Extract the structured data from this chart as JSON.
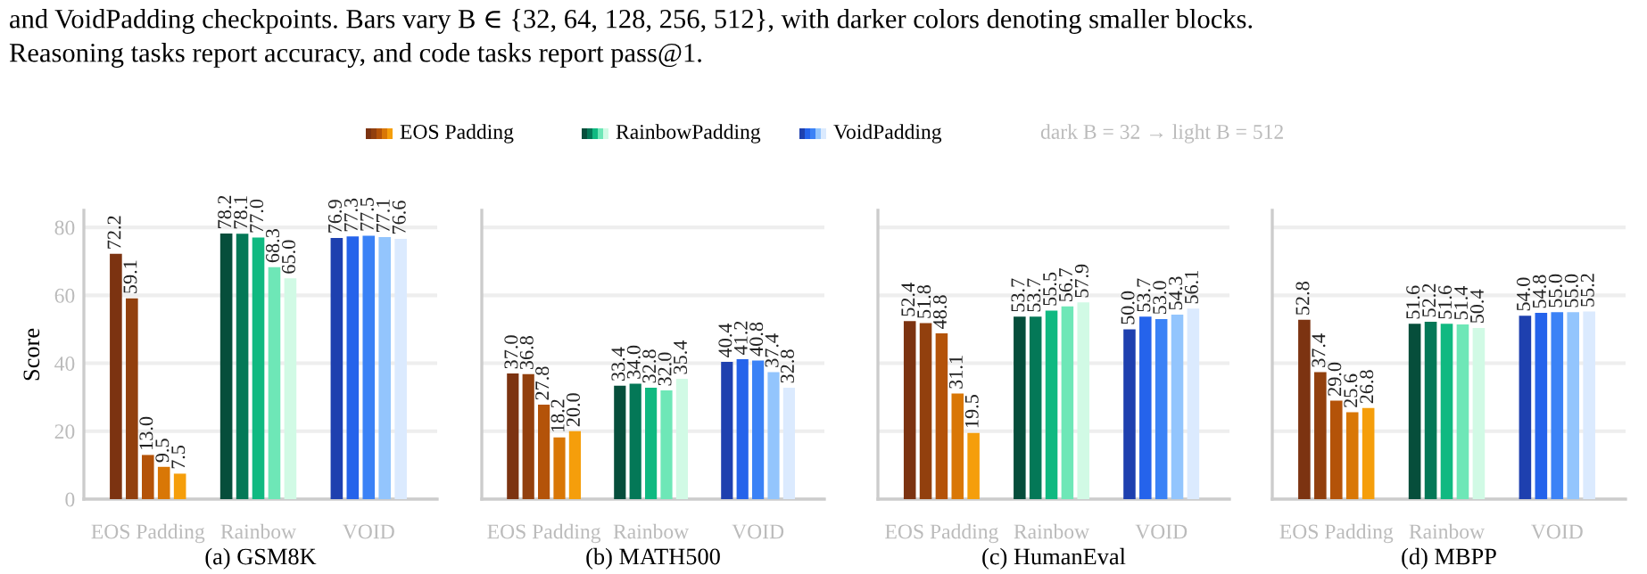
{
  "chart_data": [
    {
      "type": "bar",
      "xlabel": "(a) GSM8K",
      "ylabel": "Score",
      "categories": [
        "EOS Padding",
        "Rainbow",
        "VOID"
      ],
      "ylim": [
        0,
        85
      ],
      "yticks": [
        0,
        20,
        40,
        60,
        80
      ],
      "grid": "y",
      "annotations": [
        "and VoidPadding checkpoints. Bars vary B ∈ {32, 64, 128, 256, 512}, with darker colors denoting smaller blocks.",
        "Reasoning tasks report accuracy, and code tasks report pass@1.",
        "EOS Padding",
        "RainbowPadding",
        "VoidPadding",
        "dark B = 32 → light B = 512"
      ],
      "series": [
        {
          "colors": [
            "#7c3311",
            "#064e3b",
            "#1e40af"
          ],
          "values": [
            72.2,
            78.2,
            76.9
          ],
          "value_labels": [
            "72.2",
            "78.2",
            "76.9"
          ]
        },
        {
          "colors": [
            "#92400e",
            "#047857",
            "#2563eb"
          ],
          "values": [
            59.1,
            78.1,
            77.3
          ],
          "value_labels": [
            "59.1",
            "78.1",
            "77.3"
          ]
        },
        {
          "colors": [
            "#b45309",
            "#10b981",
            "#3b82f6"
          ],
          "values": [
            13,
            77,
            77.5
          ],
          "value_labels": [
            "13.0",
            "77.0",
            "77.5"
          ]
        },
        {
          "colors": [
            "#d97706",
            "#6ee7b7",
            "#93c5fd"
          ],
          "values": [
            9.5,
            68.3,
            77.1
          ],
          "value_labels": [
            "9.5",
            "68.3",
            "77.1"
          ]
        },
        {
          "colors": [
            "#f59e0b",
            "#d1fae5",
            "#dbeafe"
          ],
          "values": [
            7.5,
            65,
            76.6
          ],
          "value_labels": [
            "7.5",
            "65.0",
            "76.6"
          ]
        }
      ]
    },
    {
      "type": "bar",
      "xlabel": "(b) MATH500",
      "categories": [
        "EOS Padding",
        "Rainbow",
        "VOID"
      ],
      "ylim": [
        0,
        85
      ],
      "yticks": [
        0,
        20,
        40,
        60,
        80
      ],
      "grid": "y",
      "tick_labels": "x",
      "series": [
        {
          "colors": [
            "#7c3311",
            "#064e3b",
            "#1e40af"
          ],
          "values": [
            37,
            33.4,
            40.4
          ],
          "value_labels": [
            "37.0",
            "33.4",
            "40.4"
          ]
        },
        {
          "colors": [
            "#92400e",
            "#047857",
            "#2563eb"
          ],
          "values": [
            36.8,
            34,
            41.2
          ],
          "value_labels": [
            "36.8",
            "34.0",
            "41.2"
          ]
        },
        {
          "colors": [
            "#b45309",
            "#10b981",
            "#3b82f6"
          ],
          "values": [
            27.8,
            32.8,
            40.8
          ],
          "value_labels": [
            "27.8",
            "32.8",
            "40.8"
          ]
        },
        {
          "colors": [
            "#d97706",
            "#6ee7b7",
            "#93c5fd"
          ],
          "values": [
            18.2,
            32,
            37.4
          ],
          "value_labels": [
            "18.2",
            "32.0",
            "37.4"
          ]
        },
        {
          "colors": [
            "#f59e0b",
            "#d1fae5",
            "#dbeafe"
          ],
          "values": [
            20,
            35.4,
            32.8
          ],
          "value_labels": [
            "20.0",
            "35.4",
            "32.8"
          ]
        }
      ]
    },
    {
      "type": "bar",
      "xlabel": "(c) HumanEval",
      "categories": [
        "EOS Padding",
        "Rainbow",
        "VOID"
      ],
      "ylim": [
        0,
        85
      ],
      "yticks": [
        0,
        20,
        40,
        60,
        80
      ],
      "grid": "y",
      "tick_labels": "x",
      "series": [
        {
          "colors": [
            "#7c3311",
            "#064e3b",
            "#1e40af"
          ],
          "values": [
            52.4,
            53.7,
            50
          ],
          "value_labels": [
            "52.4",
            "53.7",
            "50.0"
          ]
        },
        {
          "colors": [
            "#92400e",
            "#047857",
            "#2563eb"
          ],
          "values": [
            51.8,
            53.7,
            53.7
          ],
          "value_labels": [
            "51.8",
            "53.7",
            "53.7"
          ]
        },
        {
          "colors": [
            "#b45309",
            "#10b981",
            "#3b82f6"
          ],
          "values": [
            48.8,
            55.5,
            53
          ],
          "value_labels": [
            "48.8",
            "55.5",
            "53.0"
          ]
        },
        {
          "colors": [
            "#d97706",
            "#6ee7b7",
            "#93c5fd"
          ],
          "values": [
            31.1,
            56.7,
            54.3
          ],
          "value_labels": [
            "31.1",
            "56.7",
            "54.3"
          ]
        },
        {
          "colors": [
            "#f59e0b",
            "#d1fae5",
            "#dbeafe"
          ],
          "values": [
            19.5,
            57.9,
            56.1
          ],
          "value_labels": [
            "19.5",
            "57.9",
            "56.1"
          ]
        }
      ]
    },
    {
      "type": "bar",
      "xlabel": "(d) MBPP",
      "categories": [
        "EOS Padding",
        "Rainbow",
        "VOID"
      ],
      "ylim": [
        0,
        85
      ],
      "yticks": [
        0,
        20,
        40,
        60,
        80
      ],
      "grid": "y",
      "tick_labels": "x",
      "series": [
        {
          "colors": [
            "#7c3311",
            "#064e3b",
            "#1e40af"
          ],
          "values": [
            52.8,
            51.6,
            54
          ],
          "value_labels": [
            "52.8",
            "51.6",
            "54.0"
          ]
        },
        {
          "colors": [
            "#92400e",
            "#047857",
            "#2563eb"
          ],
          "values": [
            37.4,
            52.2,
            54.8
          ],
          "value_labels": [
            "37.4",
            "52.2",
            "54.8"
          ]
        },
        {
          "colors": [
            "#b45309",
            "#10b981",
            "#3b82f6"
          ],
          "values": [
            29,
            51.6,
            55
          ],
          "value_labels": [
            "29.0",
            "51.6",
            "55.0"
          ]
        },
        {
          "colors": [
            "#d97706",
            "#6ee7b7",
            "#93c5fd"
          ],
          "values": [
            25.6,
            51.4,
            55
          ],
          "value_labels": [
            "25.6",
            "51.4",
            "55.0"
          ]
        },
        {
          "colors": [
            "#f59e0b",
            "#d1fae5",
            "#dbeafe"
          ],
          "values": [
            26.8,
            50.4,
            55.2
          ],
          "value_labels": [
            "26.8",
            "50.4",
            "55.2"
          ]
        }
      ]
    }
  ]
}
